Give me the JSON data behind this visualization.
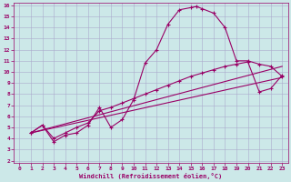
{
  "xlabel": "Windchill (Refroidissement éolien,°C)",
  "bg_color": "#cce8e8",
  "line_color": "#990066",
  "grid_color": "#aaaacc",
  "xlim": [
    -0.5,
    23.5
  ],
  "ylim": [
    1.8,
    16.2
  ],
  "xticks": [
    0,
    1,
    2,
    3,
    4,
    5,
    6,
    7,
    8,
    9,
    10,
    11,
    12,
    13,
    14,
    15,
    16,
    17,
    18,
    19,
    20,
    21,
    22,
    23
  ],
  "yticks": [
    2,
    3,
    4,
    5,
    6,
    7,
    8,
    9,
    10,
    11,
    12,
    13,
    14,
    15,
    16
  ],
  "curve1_x": [
    1,
    2,
    3,
    4,
    5,
    6,
    7,
    8,
    9,
    10,
    11,
    12,
    13,
    14,
    15,
    15.5,
    16,
    17,
    18,
    19,
    20,
    21,
    22,
    23
  ],
  "curve1_y": [
    4.5,
    5.2,
    3.7,
    4.3,
    4.5,
    5.2,
    6.8,
    5.0,
    5.7,
    7.5,
    10.8,
    12.0,
    14.3,
    15.6,
    15.8,
    15.9,
    15.7,
    15.3,
    14.0,
    11.0,
    11.0,
    10.7,
    10.5,
    9.6
  ],
  "curve2_x": [
    1,
    2,
    3,
    4,
    5,
    6,
    7,
    8,
    9,
    10,
    11,
    12,
    13,
    14,
    15,
    16,
    17,
    18,
    19,
    20,
    21,
    22,
    23
  ],
  "curve2_y": [
    4.5,
    5.2,
    4.0,
    4.5,
    5.0,
    5.4,
    6.5,
    6.8,
    7.2,
    7.6,
    8.0,
    8.4,
    8.8,
    9.2,
    9.6,
    9.9,
    10.2,
    10.5,
    10.7,
    10.9,
    8.2,
    8.5,
    9.7
  ],
  "line3_x": [
    1,
    23
  ],
  "line3_y": [
    4.5,
    9.5
  ],
  "line4_x": [
    1,
    23
  ],
  "line4_y": [
    4.5,
    10.5
  ]
}
